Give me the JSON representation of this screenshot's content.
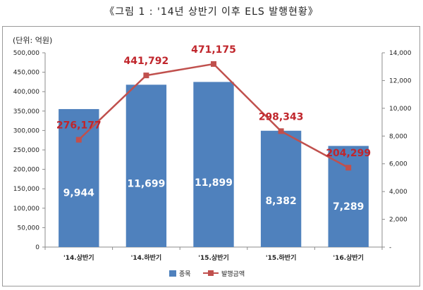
{
  "figure_title": "《그림 1 : '14년 상반기 이후 ELS 발행현황》",
  "chart_data": {
    "type": "bar",
    "categories": [
      "'14.상반기",
      "'14.하반기",
      "'15.상반기",
      "'15.하반기",
      "'16.상반기"
    ],
    "unit_label": "(단위: 억원)",
    "series": [
      {
        "name": "종목",
        "type": "bar",
        "axis": "right",
        "values": [
          9944,
          11699,
          11899,
          8382,
          7289
        ],
        "labels": [
          "9,944",
          "11,699",
          "11,899",
          "8,382",
          "7,289"
        ],
        "color": "#4f81bd"
      },
      {
        "name": "발행금액",
        "type": "line",
        "axis": "left",
        "values": [
          276177,
          441792,
          471175,
          298343,
          204299
        ],
        "labels": [
          "276,177",
          "441,792",
          "471,175",
          "298,343",
          "204,299"
        ],
        "color": "#c0504d"
      }
    ],
    "left_axis": {
      "ylim": [
        0,
        500000
      ],
      "ticks": [
        "0",
        "50,000",
        "100,000",
        "150,000",
        "200,000",
        "250,000",
        "300,000",
        "350,000",
        "400,000",
        "450,000",
        "500,000"
      ]
    },
    "right_axis": {
      "ylim": [
        0,
        14000
      ],
      "ticks": [
        "-",
        "2,000",
        "4,000",
        "6,000",
        "8,000",
        "10,000",
        "12,000",
        "14,000"
      ]
    },
    "grid": false,
    "legend_position": "bottom"
  }
}
